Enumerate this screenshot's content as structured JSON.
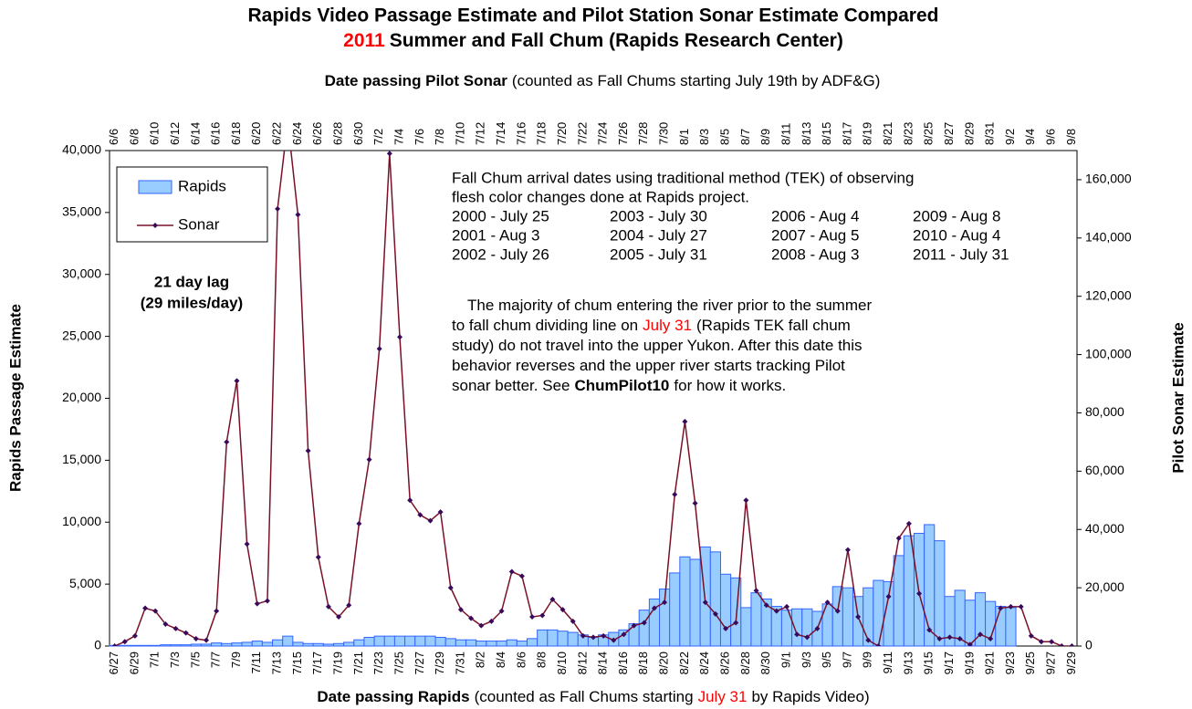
{
  "chart_data": {
    "type": "bar",
    "title": "Rapids Video Passage Estimate and Pilot Station Sonar Estimate Compared",
    "subtitle": [
      {
        "text": "2011",
        "color": "#ff0000"
      },
      {
        "text": "Summer and Fall Chum (Rapids Research Center)"
      }
    ],
    "x2label": [
      {
        "text": "Date passing Pilot Sonar",
        "bold": true
      },
      {
        "text": "(counted as Fall Chums starting July 19th by ADF&G)"
      }
    ],
    "xlabel": [
      {
        "text": "Date passing Rapids",
        "bold": true
      },
      {
        "text": "(counted as Fall Chums starting"
      },
      {
        "text": "July 31",
        "color": "#ff0000"
      },
      {
        "text": "by Rapids Video)"
      }
    ],
    "ylabel": "Rapids Passage Estimate",
    "y2label": "Pilot Sonar Estimate",
    "categories": [
      "6/27",
      null,
      "6/29",
      null,
      "7/1",
      null,
      "7/3",
      null,
      "7/5",
      null,
      "7/7",
      null,
      "7/9",
      null,
      "7/11",
      null,
      "7/13",
      null,
      "7/15",
      null,
      "7/17",
      null,
      "7/19",
      null,
      "7/21",
      null,
      "7/23",
      null,
      "7/25",
      null,
      "7/27",
      null,
      "7/29",
      null,
      "7/31",
      null,
      "8/2",
      null,
      "8/4",
      null,
      "8/6",
      null,
      "8/8",
      null,
      "8/10",
      null,
      "8/12",
      null,
      "8/14",
      null,
      "8/16",
      null,
      "8/18",
      null,
      "8/20",
      null,
      "8/22",
      null,
      "8/24",
      null,
      "8/26",
      null,
      "8/28",
      null,
      "8/30",
      null,
      "9/1",
      null,
      "9/3",
      null,
      "9/5",
      null,
      "9/7",
      null,
      "9/9",
      null,
      "9/11",
      null,
      "9/13",
      null,
      "9/15",
      null,
      "9/17",
      null,
      "9/19",
      null,
      "9/21",
      null,
      "9/23",
      null,
      "9/25",
      null,
      "9/27",
      null,
      "9/29"
    ],
    "x2categories": [
      "6/6",
      null,
      "6/8",
      null,
      "6/10",
      null,
      "6/12",
      null,
      "6/14",
      null,
      "6/16",
      null,
      "6/18",
      null,
      "6/20",
      null,
      "6/22",
      null,
      "6/24",
      null,
      "6/26",
      null,
      "6/28",
      null,
      "6/30",
      null,
      "7/2",
      null,
      "7/4",
      null,
      "7/6",
      null,
      "7/8",
      null,
      "7/10",
      null,
      "7/12",
      null,
      "7/14",
      null,
      "7/16",
      null,
      "7/18",
      null,
      "7/20",
      null,
      "7/22",
      null,
      "7/24",
      null,
      "7/26",
      null,
      "7/28",
      null,
      "7/30",
      null,
      "8/1",
      null,
      "8/3",
      null,
      "8/5",
      null,
      "8/7",
      null,
      "8/9",
      null,
      "8/11",
      null,
      "8/13",
      null,
      "8/15",
      null,
      "8/17",
      null,
      "8/19",
      null,
      "8/21",
      null,
      "8/23",
      null,
      "8/25",
      null,
      "8/27",
      null,
      "8/29",
      null,
      "8/31",
      null,
      "9/2",
      null,
      "9/4",
      null,
      "9/6",
      null,
      "9/8"
    ],
    "series": [
      {
        "name": "Rapids",
        "type": "bar",
        "color": "#99ccff",
        "edge": "#3366ff",
        "values": [
          50,
          50,
          50,
          50,
          50,
          100,
          100,
          100,
          150,
          150,
          250,
          200,
          250,
          300,
          400,
          300,
          500,
          800,
          300,
          200,
          200,
          150,
          200,
          300,
          500,
          700,
          800,
          800,
          800,
          800,
          800,
          800,
          700,
          600,
          500,
          500,
          400,
          400,
          400,
          500,
          400,
          600,
          1300,
          1300,
          1200,
          1100,
          900,
          700,
          900,
          1100,
          1300,
          1800,
          2900,
          3800,
          4600,
          5900,
          7200,
          7000,
          8000,
          7600,
          5800,
          5500,
          3100,
          4300,
          3800,
          3200,
          2900,
          3000,
          3000,
          2800,
          3400,
          4800,
          4700,
          4000,
          4700,
          5300,
          5200,
          7300,
          8900,
          9100,
          9800,
          8500,
          4000,
          4500,
          3700,
          4300,
          3600,
          3200,
          3100,
          null,
          null,
          null,
          null,
          null,
          null
        ]
      },
      {
        "name": "Sonar",
        "type": "line",
        "axis": "y2",
        "color": "#7a1028",
        "marker_color": "#3a0a5a",
        "values": [
          0,
          1500,
          3500,
          13000,
          12000,
          7500,
          6000,
          4500,
          2500,
          2000,
          12000,
          70000,
          91000,
          35000,
          14500,
          15500,
          150000,
          180000,
          148000,
          67000,
          30500,
          13500,
          10000,
          14000,
          42000,
          64000,
          102000,
          169000,
          106000,
          50000,
          45000,
          43000,
          46000,
          20000,
          12500,
          9500,
          7000,
          8500,
          12000,
          25500,
          24000,
          10000,
          10500,
          16000,
          12500,
          8500,
          3500,
          3000,
          3500,
          2000,
          4000,
          7000,
          8000,
          13000,
          15000,
          52000,
          77000,
          49000,
          15000,
          11000,
          6000,
          8000,
          50000,
          19000,
          14000,
          12000,
          13500,
          4000,
          3000,
          6000,
          15000,
          12000,
          33000,
          10000,
          2000,
          0,
          17000,
          37000,
          42000,
          18000,
          5500,
          2500,
          3000,
          2500,
          500,
          4000,
          2500,
          13000,
          13500,
          13500,
          3500,
          1500,
          1500,
          0,
          0
        ]
      }
    ],
    "ylim": [
      0,
      40000
    ],
    "yticks": [
      0,
      {
        "value": 5000,
        "label": "5,000"
      },
      {
        "value": 10000,
        "label": "10,000"
      },
      {
        "value": 15000,
        "label": "15,000"
      },
      {
        "value": 20000,
        "label": "20,000"
      },
      {
        "value": 25000,
        "label": "25,000"
      },
      {
        "value": 30000,
        "label": "30,000"
      },
      {
        "value": 35000,
        "label": "35,000"
      },
      {
        "value": 40000,
        "label": "40,000"
      }
    ],
    "y2lim": [
      0,
      170000
    ],
    "y2ticks": [
      0,
      {
        "value": 20000,
        "label": "20,000"
      },
      {
        "value": 40000,
        "label": "40,000"
      },
      {
        "value": 60000,
        "label": "60,000"
      },
      {
        "value": 80000,
        "label": "80,000"
      },
      {
        "value": 100000,
        "label": "100,000"
      },
      {
        "value": 120000,
        "label": "120,000"
      },
      {
        "value": 140000,
        "label": "140,000"
      },
      {
        "value": 160000,
        "label": "160,000"
      }
    ],
    "legend": "upper left",
    "annotations": {
      "lag": [
        "21 day lag",
        "(29 miles/day)"
      ],
      "tek_header": [
        "Fall Chum arrival dates using traditional method (TEK) of observing",
        "flesh color changes done at Rapids project."
      ],
      "tek_dates": [
        [
          "2000 - July 25",
          "2003 - July 30",
          "2006 - Aug 4",
          "2009 - Aug 8"
        ],
        [
          "2001 - Aug 3",
          "2004 - July 27",
          "2007 - Aug 5",
          "2010 - Aug 4"
        ],
        [
          "2002 - July 26",
          "2005 - July 31",
          "2008 - Aug 3",
          "2011 - July 31"
        ]
      ],
      "note": [
        [
          {
            "text": "The majority of chum entering the river prior to the summer"
          }
        ],
        [
          {
            "text": "to fall chum dividing line on"
          },
          {
            "text": "July 31",
            "color": "#ff0000"
          },
          {
            "text": "(Rapids TEK fall chum"
          }
        ],
        [
          {
            "text": "study) do not travel into the upper Yukon.  After this date this"
          }
        ],
        [
          {
            "text": "behavior reverses and the upper river starts tracking Pilot"
          }
        ],
        [
          {
            "text": "sonar better. See"
          },
          {
            "text": "ChumPilot10",
            "bold": true
          },
          {
            "text": "for how it works."
          }
        ]
      ]
    }
  }
}
